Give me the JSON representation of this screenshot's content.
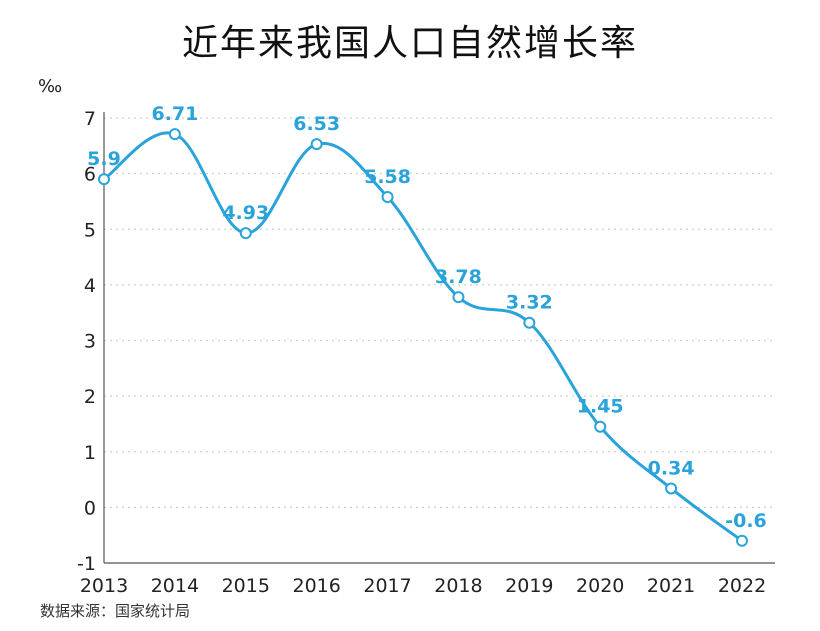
{
  "title": "近年来我国人口自然增长率",
  "unit": "‰",
  "source": "数据来源：国家统计局",
  "colors": {
    "line": "#29a3d9",
    "grid": "#cfcfcf",
    "axis": "#555555"
  },
  "chart_data": {
    "type": "line",
    "title": "近年来我国人口自然增长率",
    "xlabel": "",
    "ylabel": "‰",
    "categories": [
      "2013",
      "2014",
      "2015",
      "2016",
      "2017",
      "2018",
      "2019",
      "2020",
      "2021",
      "2022"
    ],
    "values": [
      5.9,
      6.71,
      4.93,
      6.53,
      5.58,
      3.78,
      3.32,
      1.45,
      0.34,
      -0.6
    ],
    "labels": [
      "5.9",
      "6.71",
      "4.93",
      "6.53",
      "5.58",
      "3.78",
      "3.32",
      "1.45",
      "0.34",
      "-0.6"
    ],
    "yticks": [
      "-1",
      "0",
      "1",
      "2",
      "3",
      "4",
      "5",
      "6",
      "7"
    ],
    "ylim": [
      -1,
      7
    ],
    "grid": true,
    "smooth": true,
    "legend": "none"
  }
}
